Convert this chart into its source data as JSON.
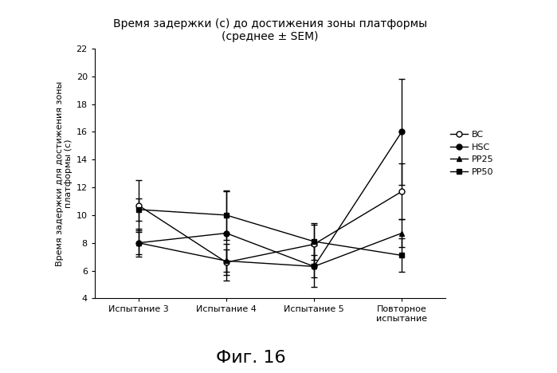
{
  "title": "Время задержки (с) до достижения зоны платформы\n(среднее ± SEM)",
  "xlabel_bottom": "Фиг. 16",
  "ylabel": "Время задержки для достижения зоны\nплатформы (с)",
  "x_labels": [
    "Испытание 3",
    "Испытание 4",
    "Испытание 5",
    "Повторное\nиспытание"
  ],
  "x_positions": [
    0,
    1,
    2,
    3
  ],
  "ylim": [
    4,
    22
  ],
  "yticks": [
    4,
    6,
    8,
    10,
    12,
    14,
    16,
    18,
    20,
    22
  ],
  "series": [
    {
      "label": "BC",
      "color": "#000000",
      "marker": "o",
      "markerfacecolor": "white",
      "markeredgecolor": "#000000",
      "linewidth": 1.0,
      "markersize": 5,
      "y": [
        10.7,
        6.6,
        7.9,
        11.7
      ],
      "yerr": [
        1.8,
        1.3,
        1.4,
        2.0
      ]
    },
    {
      "label": "HSC",
      "color": "#000000",
      "marker": "o",
      "markerfacecolor": "#000000",
      "markeredgecolor": "#000000",
      "linewidth": 1.0,
      "markersize": 5,
      "y": [
        8.0,
        8.7,
        6.3,
        16.0
      ],
      "yerr": [
        1.0,
        3.0,
        1.5,
        3.8
      ]
    },
    {
      "label": "PP25",
      "color": "#000000",
      "marker": "^",
      "markerfacecolor": "#000000",
      "markeredgecolor": "#000000",
      "linewidth": 1.0,
      "markersize": 5,
      "y": [
        8.0,
        6.7,
        6.3,
        8.7
      ],
      "yerr": [
        0.8,
        0.8,
        0.8,
        1.0
      ]
    },
    {
      "label": "PP50",
      "color": "#000000",
      "marker": "s",
      "markerfacecolor": "#000000",
      "markeredgecolor": "#000000",
      "linewidth": 1.0,
      "markersize": 5,
      "y": [
        10.4,
        10.0,
        8.1,
        7.1
      ],
      "yerr": [
        0.8,
        1.8,
        1.3,
        1.2
      ]
    }
  ],
  "background_color": "#ffffff",
  "title_fontsize": 10,
  "ylabel_fontsize": 8,
  "tick_fontsize": 8,
  "legend_fontsize": 8,
  "fig16_fontsize": 16
}
